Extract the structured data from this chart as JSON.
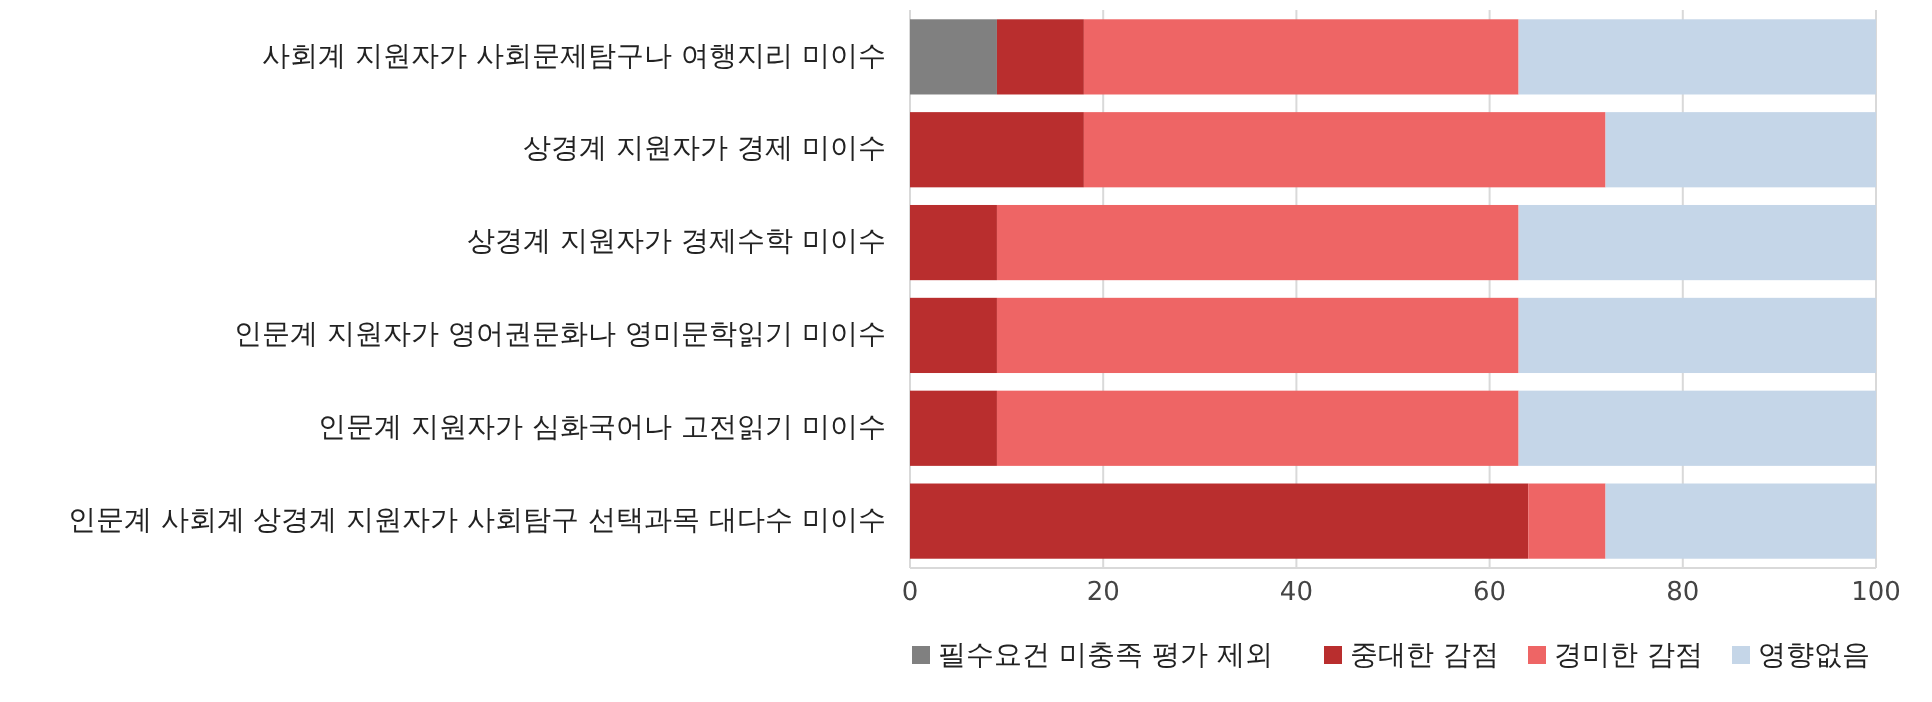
{
  "chart_data": {
    "type": "bar",
    "orientation": "horizontal",
    "stacked": true,
    "categories": [
      "사회계 지원자가 사회문제탐구나 여행지리 미이수",
      "상경계 지원자가 경제 미이수",
      "상경계 지원자가 경제수학 미이수",
      "인문계 지원자가 영어권문화나 영미문학읽기 미이수",
      "인문계 지원자가 심화국어나 고전읽기 미이수",
      "인문계 사회계 상경계 지원자가 사회탐구 선택과목 대다수 미이수"
    ],
    "series": [
      {
        "name": "필수요건 미충족 평가 제외",
        "color": "#808080",
        "values": [
          9,
          0,
          0,
          0,
          0,
          0
        ]
      },
      {
        "name": "중대한 감점",
        "color": "#b92e2e",
        "values": [
          9,
          18,
          9,
          9,
          9,
          64
        ]
      },
      {
        "name": "경미한 감점",
        "color": "#ee6565",
        "values": [
          45,
          54,
          54,
          54,
          54,
          8
        ]
      },
      {
        "name": "영향없음",
        "color": "#c5d6e8",
        "values": [
          37,
          28,
          37,
          37,
          37,
          28
        ]
      }
    ],
    "xlim": [
      0,
      100
    ],
    "xticks": [
      0,
      20,
      40,
      60,
      80,
      100
    ],
    "grid": "x",
    "legend": "bottom"
  }
}
